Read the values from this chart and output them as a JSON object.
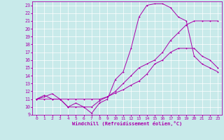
{
  "xlabel": "Windchill (Refroidissement éolien,°C)",
  "bg_color": "#c8eaea",
  "grid_color": "#ffffff",
  "line_color": "#aa00aa",
  "xlim": [
    -0.5,
    23.5
  ],
  "ylim": [
    9,
    23.5
  ],
  "yticks": [
    9,
    10,
    11,
    12,
    13,
    14,
    15,
    16,
    17,
    18,
    19,
    20,
    21,
    22,
    23
  ],
  "xticks": [
    0,
    1,
    2,
    3,
    4,
    5,
    6,
    7,
    8,
    9,
    10,
    11,
    12,
    13,
    14,
    15,
    16,
    17,
    18,
    19,
    20,
    21,
    22,
    23
  ],
  "series1_x": [
    0,
    1,
    2,
    3,
    4,
    5,
    6,
    7,
    8,
    9,
    10,
    11,
    12,
    13,
    14,
    15,
    16,
    17,
    18,
    19,
    20,
    21,
    22,
    23
  ],
  "series1_y": [
    11,
    11.5,
    11,
    11,
    10,
    10.5,
    10,
    9.2,
    10.5,
    11,
    13.5,
    14.5,
    17.5,
    21.5,
    23,
    23.2,
    23.2,
    22.7,
    21.5,
    21,
    16.5,
    15.5,
    15,
    14.5
  ],
  "series2_x": [
    0,
    1,
    2,
    3,
    4,
    5,
    6,
    7,
    8,
    9,
    10,
    11,
    12,
    13,
    14,
    15,
    16,
    17,
    18,
    19,
    20,
    21,
    22,
    23
  ],
  "series2_y": [
    11,
    11,
    11,
    11,
    11,
    11,
    11,
    11,
    11,
    11.3,
    11.8,
    12.2,
    12.8,
    13.3,
    14.2,
    15.5,
    16,
    17,
    17.5,
    17.5,
    17.5,
    16.5,
    16,
    15
  ],
  "series3_x": [
    0,
    1,
    2,
    3,
    4,
    5,
    6,
    7,
    8,
    9,
    10,
    11,
    12,
    13,
    14,
    15,
    16,
    17,
    18,
    19,
    20,
    21,
    22,
    23
  ],
  "series3_y": [
    11,
    11.3,
    11.7,
    11,
    10,
    10,
    10,
    10,
    10.8,
    11.3,
    12,
    13,
    14,
    15,
    15.5,
    16,
    17,
    18.5,
    19.5,
    20.5,
    21,
    21,
    21,
    21
  ]
}
